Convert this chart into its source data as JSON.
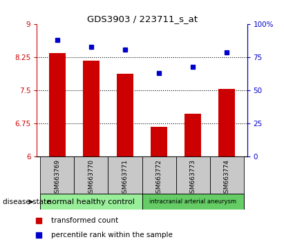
{
  "title": "GDS3903 / 223711_s_at",
  "samples": [
    "GSM663769",
    "GSM663770",
    "GSM663771",
    "GSM663772",
    "GSM663773",
    "GSM663774"
  ],
  "bar_values": [
    8.35,
    8.17,
    7.87,
    6.67,
    6.97,
    7.53
  ],
  "dot_values": [
    88,
    83,
    81,
    63,
    68,
    79
  ],
  "ylim_left": [
    6,
    9
  ],
  "ylim_right": [
    0,
    100
  ],
  "yticks_left": [
    6,
    6.75,
    7.5,
    8.25,
    9
  ],
  "yticks_right": [
    0,
    25,
    50,
    75,
    100
  ],
  "ytick_labels_left": [
    "6",
    "6.75",
    "7.5",
    "8.25",
    "9"
  ],
  "ytick_labels_right": [
    "0",
    "25",
    "50",
    "75",
    "100%"
  ],
  "bar_color": "#cc0000",
  "dot_color": "#0000cc",
  "bg_color": "#ffffff",
  "tick_area_bg": "#c8c8c8",
  "group1_label": "normal healthy control",
  "group2_label": "intracranial arterial aneurysm",
  "group1_color": "#99ee99",
  "group2_color": "#66cc66",
  "legend_bar_label": "transformed count",
  "legend_dot_label": "percentile rank within the sample",
  "disease_state_label": "disease state",
  "hgrid_vals": [
    6.75,
    7.5,
    8.25
  ]
}
